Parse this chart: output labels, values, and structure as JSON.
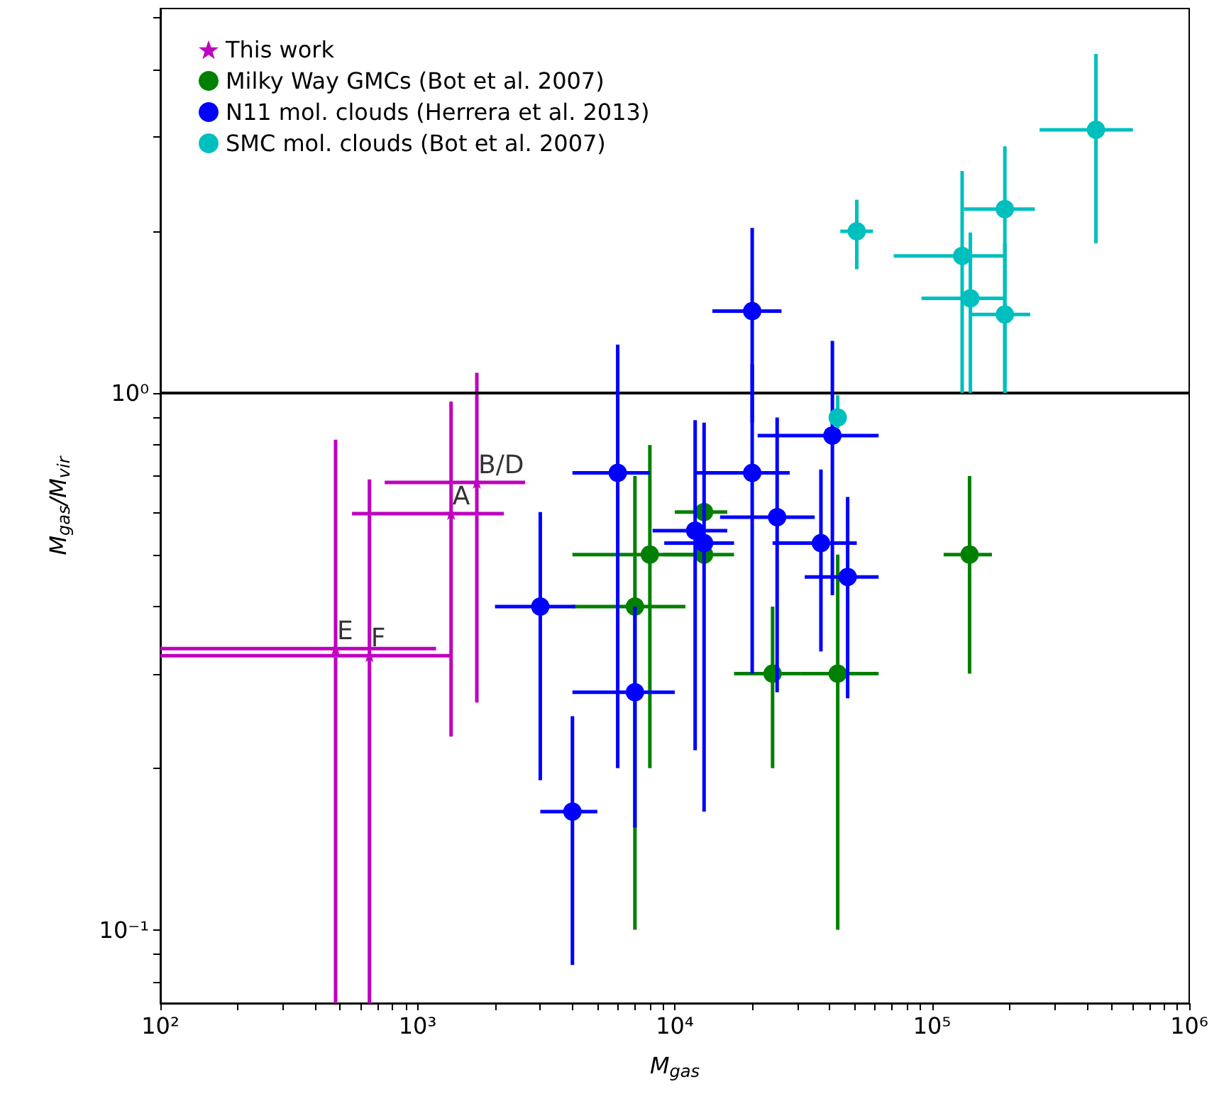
{
  "chart_data": {
    "type": "scatter",
    "xlabel": "M$_{gas}$",
    "ylabel": "M$_{gas}$/M$_{vir}$",
    "log": "xy",
    "grid": false,
    "legend": "top left",
    "marker": "circle",
    "xlim": [
      100,
      1000000
    ],
    "ylim": [
      0.073,
      5.2
    ],
    "xticks": [
      {
        "value": 100,
        "label": "10²"
      },
      {
        "value": 200,
        "label": null
      },
      {
        "value": 300,
        "label": null
      },
      {
        "value": 400,
        "label": null
      },
      {
        "value": 500,
        "label": null
      },
      {
        "value": 600,
        "label": null
      },
      {
        "value": 700,
        "label": null
      },
      {
        "value": 800,
        "label": null
      },
      {
        "value": 900,
        "label": null
      },
      {
        "value": 1000,
        "label": "10³"
      },
      {
        "value": 2000,
        "label": null
      },
      {
        "value": 3000,
        "label": null
      },
      {
        "value": 4000,
        "label": null
      },
      {
        "value": 5000,
        "label": null
      },
      {
        "value": 6000,
        "label": null
      },
      {
        "value": 7000,
        "label": null
      },
      {
        "value": 8000,
        "label": null
      },
      {
        "value": 9000,
        "label": null
      },
      {
        "value": 10000,
        "label": "10⁴"
      },
      {
        "value": 20000,
        "label": null
      },
      {
        "value": 30000,
        "label": null
      },
      {
        "value": 40000,
        "label": null
      },
      {
        "value": 50000,
        "label": null
      },
      {
        "value": 60000,
        "label": null
      },
      {
        "value": 70000,
        "label": null
      },
      {
        "value": 80000,
        "label": null
      },
      {
        "value": 90000,
        "label": null
      },
      {
        "value": 100000,
        "label": "10⁵"
      },
      {
        "value": 200000,
        "label": null
      },
      {
        "value": 300000,
        "label": null
      },
      {
        "value": 400000,
        "label": null
      },
      {
        "value": 500000,
        "label": null
      },
      {
        "value": 600000,
        "label": null
      },
      {
        "value": 700000,
        "label": null
      },
      {
        "value": 800000,
        "label": null
      },
      {
        "value": 900000,
        "label": null
      },
      {
        "value": 1000000,
        "label": "10⁶"
      }
    ],
    "yticks": [
      {
        "value": 0.08,
        "label": null
      },
      {
        "value": 0.09,
        "label": null
      },
      {
        "value": 0.1,
        "label": "10⁻¹"
      },
      {
        "value": 0.2,
        "label": null
      },
      {
        "value": 0.3,
        "label": null
      },
      {
        "value": 0.4,
        "label": null
      },
      {
        "value": 0.5,
        "label": null
      },
      {
        "value": 0.6,
        "label": null
      },
      {
        "value": 0.7,
        "label": null
      },
      {
        "value": 0.8,
        "label": null
      },
      {
        "value": 0.9,
        "label": null
      },
      {
        "value": 1,
        "label": "10⁰"
      },
      {
        "value": 2,
        "label": null
      },
      {
        "value": 3,
        "label": null
      },
      {
        "value": 4,
        "label": null
      },
      {
        "value": 5,
        "label": null
      }
    ],
    "ref_lines": [
      {
        "axis": "y",
        "value": 1,
        "label": null,
        "color": "#000000",
        "line_style": "solid"
      }
    ],
    "annotations": [
      {
        "text": "E",
        "x": 480,
        "y": 0.334
      },
      {
        "text": "F",
        "x": 650,
        "y": 0.324
      },
      {
        "text": "A",
        "x": 1350,
        "y": 0.596
      },
      {
        "text": "B/D",
        "x": 1700,
        "y": 0.681
      }
    ],
    "series": [
      {
        "name": "This work",
        "color": "#bf00bf",
        "marker": "star",
        "x": [
          480,
          650,
          1350,
          1700
        ],
        "values": [
          0.334,
          0.324,
          0.596,
          0.681
        ],
        "xerrors": [
          [
            100,
            1180
          ],
          [
            100,
            1350
          ],
          [
            556,
            2165
          ],
          [
            745,
            2620
          ]
        ],
        "errors": [
          [
            0.073,
            0.818
          ],
          [
            0.073,
            0.69
          ],
          [
            0.229,
            0.964
          ],
          [
            0.265,
            1.09
          ]
        ]
      },
      {
        "name": "Milky Way GMCs (Bot et al. 2007)",
        "color": "#008000",
        "x": [
          7000,
          8000,
          13000,
          13000,
          24000,
          43000,
          140000
        ],
        "values": [
          0.4,
          0.5,
          0.6,
          0.5,
          0.3,
          0.3,
          0.5
        ],
        "xerrors": [
          [
            4000,
            11000
          ],
          [
            4000,
            12000
          ],
          [
            10000,
            16000
          ],
          [
            9000,
            17000
          ],
          [
            17000,
            31000
          ],
          [
            31000,
            62000
          ],
          [
            111000,
            171000
          ]
        ],
        "errors": [
          [
            0.1,
            0.7
          ],
          [
            0.2,
            0.8
          ],
          null,
          null,
          [
            0.2,
            0.4
          ],
          [
            0.1,
            0.5
          ],
          [
            0.3,
            0.7
          ]
        ]
      },
      {
        "name": "N11 mol. clouds (Herrera et al. 2013)",
        "color": "#0000ff",
        "x": [
          3000,
          4000,
          6000,
          7000,
          12000,
          13000,
          20000,
          20000,
          25000,
          37000,
          41000,
          47000
        ],
        "values": [
          0.4,
          0.166,
          0.71,
          0.277,
          0.554,
          0.525,
          1.42,
          0.71,
          0.587,
          0.525,
          0.833,
          0.454
        ],
        "xerrors": [
          [
            2000,
            4100
          ],
          [
            3000,
            5000
          ],
          [
            4000,
            8000
          ],
          [
            4000,
            10000
          ],
          [
            8200,
            16000
          ],
          [
            9100,
            17000
          ],
          [
            14000,
            26000
          ],
          [
            12000,
            28000
          ],
          [
            15000,
            35000
          ],
          [
            24000,
            51000
          ],
          [
            21000,
            62000
          ],
          [
            32000,
            62000
          ]
        ],
        "errors": [
          [
            0.19,
            0.6
          ],
          [
            0.086,
            0.25
          ],
          [
            0.2,
            1.23
          ],
          [
            0.155,
            0.4
          ],
          [
            0.216,
            0.89
          ],
          [
            0.166,
            0.88
          ],
          [
            0.88,
            2.03
          ],
          [
            0.3,
            1.13
          ],
          [
            0.277,
            0.9
          ],
          [
            0.33,
            0.72
          ],
          [
            0.42,
            1.25
          ],
          [
            0.27,
            0.64
          ]
        ]
      },
      {
        "name": "SMC mol. clouds (Bot et al. 2007)",
        "color": "#00bfbf",
        "x": [
          51000,
          131000,
          192000,
          141000,
          192000,
          434000,
          43000
        ],
        "values": [
          2.0,
          1.8,
          2.2,
          1.5,
          1.4,
          3.09,
          0.9
        ],
        "xerrors": [
          [
            44000,
            59000
          ],
          [
            71000,
            192000
          ],
          [
            133000,
            251000
          ],
          [
            91000,
            192000
          ],
          [
            142000,
            241000
          ],
          [
            262000,
            604000
          ],
          null
        ],
        "errors": [
          [
            1.7,
            2.29
          ],
          [
            1.0,
            2.59
          ],
          [
            1.0,
            2.88
          ],
          [
            1.0,
            1.99
          ],
          [
            1.0,
            1.9
          ],
          [
            1.9,
            4.28
          ],
          [
            0.86,
            0.99
          ]
        ]
      }
    ]
  }
}
